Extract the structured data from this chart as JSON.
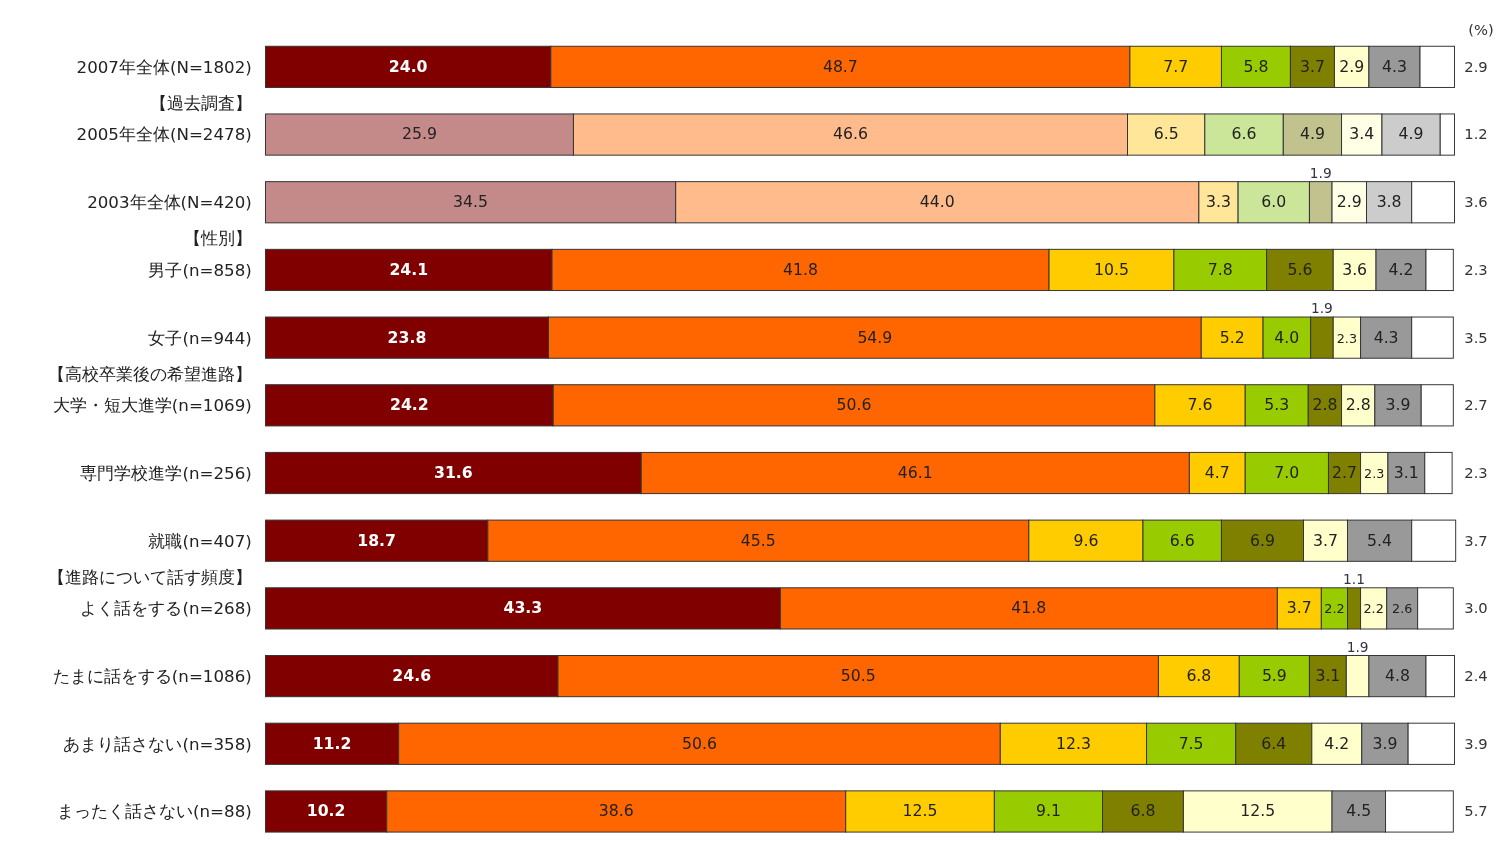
{
  "chart_data": {
    "type": "bar",
    "orientation": "horizontal",
    "stacked": true,
    "tick_labels": "y",
    "xlim": [
      0,
      100
    ],
    "categories": [
      "2007年全体(N=1802)",
      "【過去調査】",
      "2005年全体(N=2478)",
      "2003年全体(N=420)",
      "【性別】",
      "男子(n=858)",
      "女子(n=944)",
      "【高校卒業後の希望進路】",
      "大学・短大進学(n=1069)",
      "専門学校進学(n=256)",
      "就職(n=407)",
      "【進路について話す頻度】",
      "よく話をする(n=268)",
      "たまに話をする(n=1086)",
      "あまり話さない(n=358)",
      "まったく話さない(n=88)"
    ],
    "annotations": [
      "(%)"
    ],
    "series": [
      {
        "colors": [
          "#800000",
          null,
          "#c48a8a",
          "#c48a8a",
          null,
          "#800000",
          "#800000",
          null,
          "#800000",
          "#800000",
          "#800000",
          null,
          "#800000",
          "#800000",
          "#800000",
          "#800000"
        ],
        "values": [
          24.0,
          null,
          25.9,
          34.5,
          null,
          24.1,
          23.8,
          null,
          24.2,
          31.6,
          18.7,
          null,
          43.3,
          24.6,
          11.2,
          10.2
        ],
        "value_labels": [
          "24.0",
          null,
          "25.9",
          "34.5",
          null,
          "24.1",
          "23.8",
          null,
          "24.2",
          "31.6",
          "18.7",
          null,
          "43.3",
          "24.6",
          "11.2",
          "10.2"
        ]
      },
      {
        "colors": [
          "#ff6600",
          null,
          "#ffbb8c",
          "#ffbb8c",
          null,
          "#ff6600",
          "#ff6600",
          null,
          "#ff6600",
          "#ff6600",
          "#ff6600",
          null,
          "#ff6600",
          "#ff6600",
          "#ff6600",
          "#ff6600"
        ],
        "values": [
          48.7,
          null,
          46.6,
          44.0,
          null,
          41.8,
          54.9,
          null,
          50.6,
          46.1,
          45.5,
          null,
          41.8,
          50.5,
          50.6,
          38.6
        ],
        "value_labels": [
          "48.7",
          null,
          "46.6",
          "44.0",
          null,
          "41.8",
          "54.9",
          null,
          "50.6",
          "46.1",
          "45.5",
          null,
          "41.8",
          "50.5",
          "50.6",
          "38.6"
        ]
      },
      {
        "colors": [
          "#ffcc00",
          null,
          "#ffe699",
          "#ffe699",
          null,
          "#ffcc00",
          "#ffcc00",
          null,
          "#ffcc00",
          "#ffcc00",
          "#ffcc00",
          null,
          "#ffcc00",
          "#ffcc00",
          "#ffcc00",
          "#ffcc00"
        ],
        "values": [
          7.7,
          null,
          6.5,
          3.3,
          null,
          10.5,
          5.2,
          null,
          7.6,
          4.7,
          9.6,
          null,
          3.7,
          6.8,
          12.3,
          12.5
        ],
        "value_labels": [
          "7.7",
          null,
          "6.5",
          "3.3",
          null,
          "10.5",
          "5.2",
          null,
          "7.6",
          "4.7",
          "9.6",
          null,
          "3.7",
          "6.8",
          "12.3",
          "12.5"
        ]
      },
      {
        "colors": [
          "#99cc00",
          null,
          "#cce699",
          "#cce699",
          null,
          "#99cc00",
          "#99cc00",
          null,
          "#99cc00",
          "#99cc00",
          "#99cc00",
          null,
          "#99cc00",
          "#99cc00",
          "#99cc00",
          "#99cc00"
        ],
        "values": [
          5.8,
          null,
          6.6,
          6.0,
          null,
          7.8,
          4.0,
          null,
          5.3,
          7.0,
          6.6,
          null,
          2.2,
          5.9,
          7.5,
          9.1
        ],
        "value_labels": [
          "5.8",
          null,
          "6.6",
          "6.0",
          null,
          "7.8",
          "4.0",
          null,
          "5.3",
          "7.0",
          "6.6",
          null,
          "2.2",
          "5.9",
          "7.5",
          "9.1"
        ]
      },
      {
        "colors": [
          "#808000",
          null,
          "#c2c28f",
          "#c2c28f",
          null,
          "#808000",
          "#808000",
          null,
          "#808000",
          "#808000",
          "#808000",
          null,
          "#808000",
          "#808000",
          "#808000",
          "#808000"
        ],
        "values": [
          3.7,
          null,
          4.9,
          1.9,
          null,
          5.6,
          1.9,
          null,
          2.8,
          2.7,
          6.9,
          null,
          1.1,
          3.1,
          6.4,
          6.8
        ],
        "value_labels": [
          "3.7",
          null,
          "4.9",
          "1.9",
          null,
          "5.6",
          "1.9",
          null,
          "2.8",
          "2.7",
          "6.9",
          null,
          "1.1",
          "3.1",
          "6.4",
          "6.8"
        ]
      },
      {
        "colors": [
          "#ffffcc",
          null,
          "#ffffe6",
          "#ffffe6",
          null,
          "#ffffcc",
          "#ffffcc",
          null,
          "#ffffcc",
          "#ffffcc",
          "#ffffcc",
          null,
          "#ffffcc",
          "#ffffcc",
          "#ffffcc",
          "#ffffcc"
        ],
        "values": [
          2.9,
          null,
          3.4,
          2.9,
          null,
          3.6,
          2.3,
          null,
          2.8,
          2.3,
          3.7,
          null,
          2.2,
          1.9,
          4.2,
          12.5
        ],
        "value_labels": [
          "2.9",
          null,
          "3.4",
          "2.9",
          null,
          "3.6",
          "2.3",
          null,
          "2.8",
          "2.3",
          "3.7",
          null,
          "2.2",
          "1.9",
          "4.2",
          "12.5"
        ]
      },
      {
        "colors": [
          "#999999",
          null,
          "#cccccc",
          "#cccccc",
          null,
          "#999999",
          "#999999",
          null,
          "#999999",
          "#999999",
          "#999999",
          null,
          "#999999",
          "#999999",
          "#999999",
          "#999999"
        ],
        "values": [
          4.3,
          null,
          4.9,
          3.8,
          null,
          4.2,
          4.3,
          null,
          3.9,
          3.1,
          5.4,
          null,
          2.6,
          4.8,
          3.9,
          4.5
        ],
        "value_labels": [
          "4.3",
          null,
          "4.9",
          "3.8",
          null,
          "4.2",
          "4.3",
          null,
          "3.9",
          "3.1",
          "5.4",
          null,
          "2.6",
          "4.8",
          "3.9",
          "4.5"
        ]
      },
      {
        "color": "#ffffff",
        "values": [
          2.9,
          null,
          1.2,
          3.6,
          null,
          2.3,
          3.5,
          null,
          2.7,
          2.3,
          3.7,
          null,
          3.0,
          2.4,
          3.9,
          5.7
        ],
        "value_labels": [
          "2.9",
          null,
          "1.2",
          "3.6",
          null,
          "2.3",
          "3.5",
          null,
          "2.7",
          "2.3",
          "3.7",
          null,
          "3.0",
          "2.4",
          "3.9",
          "5.7"
        ]
      }
    ]
  }
}
